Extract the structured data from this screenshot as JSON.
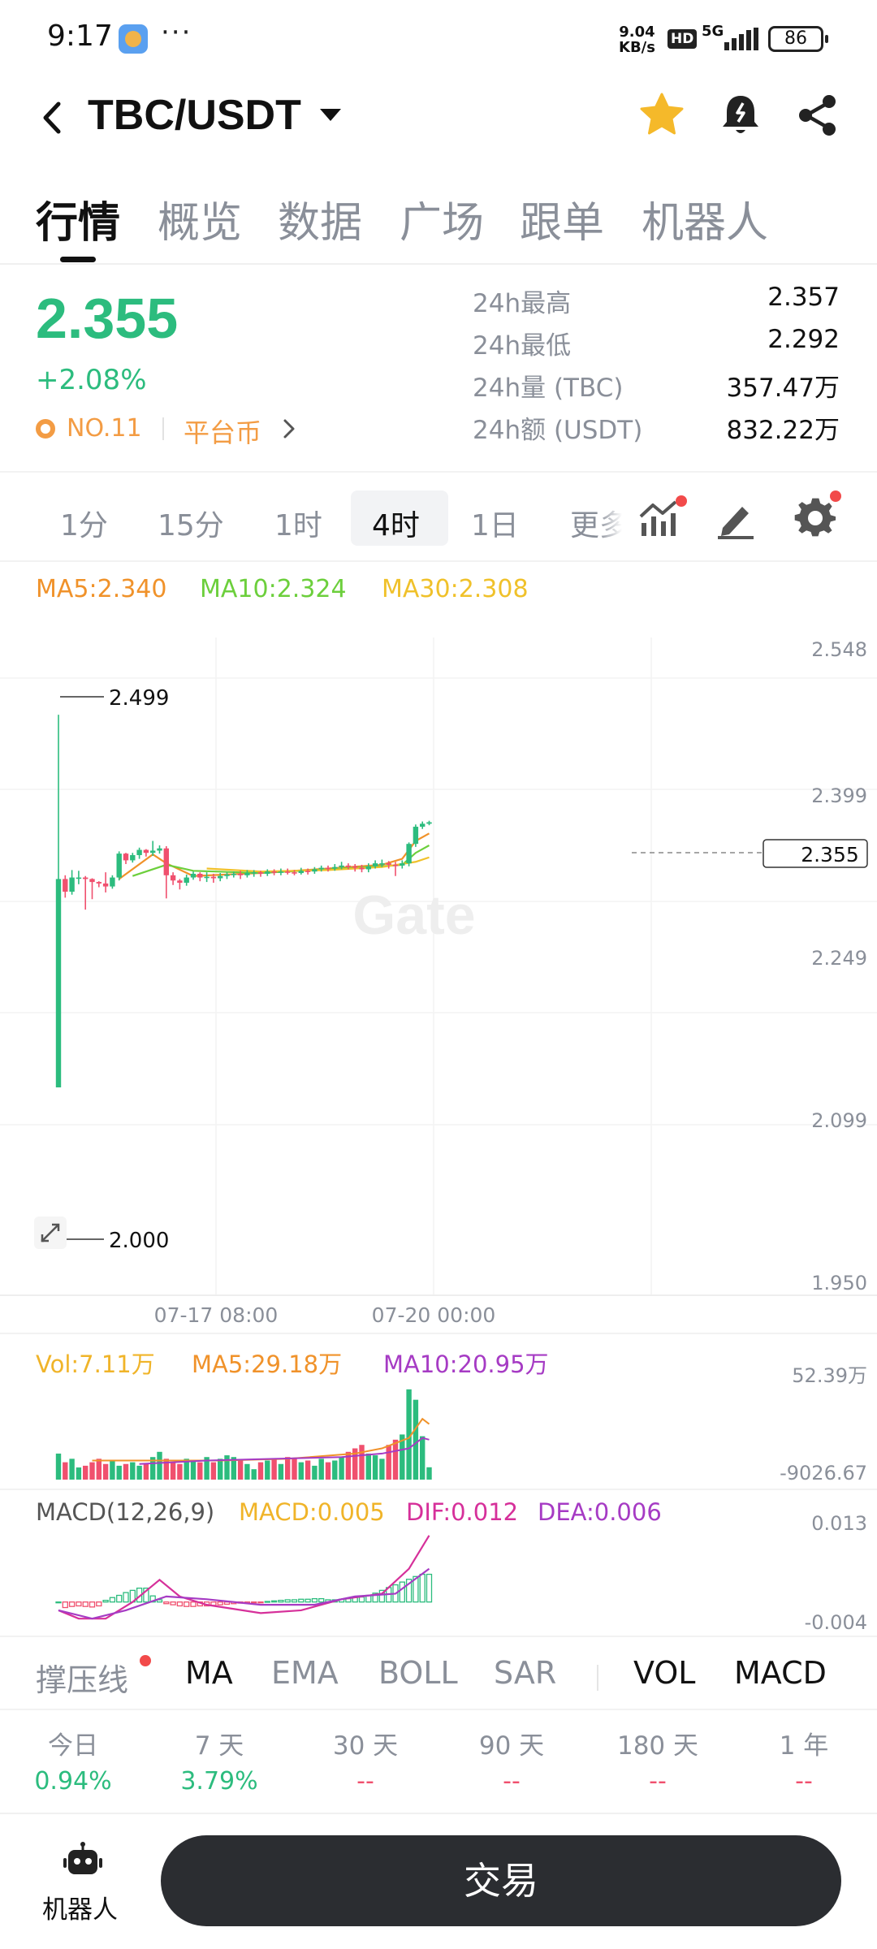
{
  "status_bar": {
    "time": "9:17",
    "more": "···",
    "net_speed_value": "9.04",
    "net_speed_unit": "KB/s",
    "hd": "HD",
    "network": "5G",
    "battery": "86"
  },
  "header": {
    "pair": "TBC/USDT"
  },
  "main_tabs": [
    "行情",
    "概览",
    "数据",
    "广场",
    "跟单",
    "机器人"
  ],
  "ticker": {
    "price": "2.355",
    "change": "+2.08%",
    "rank": "NO.11",
    "category": "平台币",
    "stats": [
      {
        "label": "24h最高",
        "value": "2.357"
      },
      {
        "label": "24h最低",
        "value": "2.292"
      },
      {
        "label": "24h量 (TBC)",
        "value": "357.47万"
      },
      {
        "label": "24h额 (USDT)",
        "value": "832.22万"
      }
    ]
  },
  "intervals": {
    "items": [
      "1分",
      "15分",
      "1时",
      "4时",
      "1日"
    ],
    "active": "4时",
    "more": "更多"
  },
  "ma_legend": {
    "ma5": "MA5:2.340",
    "ma10": "MA10:2.324",
    "ma30": "MA30:2.308"
  },
  "colors": {
    "up": "#2cbc7e",
    "down": "#f0506e",
    "ma5": "#f0922a",
    "ma10": "#6ccf3c",
    "ma30": "#f0c12a",
    "vol_ma10": "#a63bc4",
    "dif": "#d6309a",
    "dea": "#a63bc4"
  },
  "chart_data": [
    {
      "type": "candlestick",
      "interval": "4时",
      "x_ticks": [
        "07-17 08:00",
        "07-20 00:00"
      ],
      "y_ticks": [
        "2.548",
        "2.399",
        "2.249",
        "2.099",
        "1.950"
      ],
      "ylim": [
        1.95,
        2.548
      ],
      "high_marker": "2.499",
      "low_marker": "2.000",
      "last_price": "2.355",
      "watermark": "Gate",
      "candles": [
        [
          2.0,
          2.279,
          2.0,
          2.499
        ],
        [
          2.279,
          2.262,
          2.254,
          2.284
        ],
        [
          2.262,
          2.281,
          2.258,
          2.291
        ],
        [
          2.281,
          2.281,
          2.272,
          2.29
        ],
        [
          2.281,
          2.279,
          2.238,
          2.283
        ],
        [
          2.279,
          2.275,
          2.252,
          2.28
        ],
        [
          2.275,
          2.273,
          2.268,
          2.276
        ],
        [
          2.273,
          2.269,
          2.261,
          2.288
        ],
        [
          2.269,
          2.281,
          2.266,
          2.284
        ],
        [
          2.281,
          2.313,
          2.277,
          2.316
        ],
        [
          2.313,
          2.304,
          2.299,
          2.314
        ],
        [
          2.304,
          2.311,
          2.301,
          2.314
        ],
        [
          2.311,
          2.318,
          2.306,
          2.321
        ],
        [
          2.318,
          2.314,
          2.309,
          2.319
        ],
        [
          2.314,
          2.317,
          2.31,
          2.33
        ],
        [
          2.317,
          2.32,
          2.313,
          2.324
        ],
        [
          2.32,
          2.284,
          2.253,
          2.323
        ],
        [
          2.284,
          2.277,
          2.271,
          2.288
        ],
        [
          2.277,
          2.274,
          2.265,
          2.279
        ],
        [
          2.274,
          2.281,
          2.27,
          2.285
        ],
        [
          2.281,
          2.286,
          2.278,
          2.289
        ],
        [
          2.286,
          2.281,
          2.276,
          2.288
        ],
        [
          2.281,
          2.282,
          2.275,
          2.288
        ],
        [
          2.282,
          2.28,
          2.274,
          2.286
        ],
        [
          2.28,
          2.283,
          2.276,
          2.287
        ],
        [
          2.283,
          2.285,
          2.279,
          2.288
        ],
        [
          2.285,
          2.286,
          2.281,
          2.289
        ],
        [
          2.286,
          2.284,
          2.279,
          2.29
        ],
        [
          2.284,
          2.287,
          2.281,
          2.291
        ],
        [
          2.287,
          2.288,
          2.282,
          2.291
        ],
        [
          2.288,
          2.286,
          2.282,
          2.29
        ],
        [
          2.286,
          2.289,
          2.283,
          2.292
        ],
        [
          2.289,
          2.288,
          2.284,
          2.292
        ],
        [
          2.288,
          2.289,
          2.284,
          2.293
        ],
        [
          2.289,
          2.288,
          2.285,
          2.293
        ],
        [
          2.288,
          2.287,
          2.284,
          2.291
        ],
        [
          2.287,
          2.29,
          2.285,
          2.294
        ],
        [
          2.29,
          2.289,
          2.285,
          2.293
        ],
        [
          2.289,
          2.292,
          2.286,
          2.295
        ],
        [
          2.292,
          2.294,
          2.289,
          2.297
        ],
        [
          2.294,
          2.293,
          2.289,
          2.297
        ],
        [
          2.293,
          2.295,
          2.29,
          2.299
        ],
        [
          2.295,
          2.297,
          2.292,
          2.302
        ],
        [
          2.297,
          2.296,
          2.292,
          2.3
        ],
        [
          2.296,
          2.294,
          2.289,
          2.299
        ],
        [
          2.294,
          2.292,
          2.288,
          2.298
        ],
        [
          2.292,
          2.296,
          2.288,
          2.3
        ],
        [
          2.296,
          2.3,
          2.293,
          2.304
        ],
        [
          2.3,
          2.3,
          2.295,
          2.305
        ],
        [
          2.3,
          2.298,
          2.293,
          2.303
        ],
        [
          2.298,
          2.297,
          2.283,
          2.302
        ],
        [
          2.297,
          2.3,
          2.293,
          2.304
        ],
        [
          2.3,
          2.326,
          2.296,
          2.328
        ],
        [
          2.326,
          2.349,
          2.322,
          2.352
        ],
        [
          2.349,
          2.353,
          2.346,
          2.356
        ],
        [
          2.353,
          2.355,
          2.351,
          2.357
        ]
      ],
      "ma_lines": {
        "MA5": [
          [
            9,
            2.279
          ],
          [
            14,
            2.312
          ],
          [
            16,
            2.3
          ],
          [
            20,
            2.283
          ],
          [
            30,
            2.287
          ],
          [
            40,
            2.293
          ],
          [
            48,
            2.298
          ],
          [
            51,
            2.306
          ],
          [
            53,
            2.33
          ],
          [
            55,
            2.34
          ]
        ],
        "MA10": [
          [
            11,
            2.283
          ],
          [
            16,
            2.298
          ],
          [
            20,
            2.29
          ],
          [
            30,
            2.287
          ],
          [
            40,
            2.292
          ],
          [
            48,
            2.296
          ],
          [
            51,
            2.298
          ],
          [
            53,
            2.314
          ],
          [
            55,
            2.324
          ]
        ],
        "MA30": [
          [
            22,
            2.293
          ],
          [
            30,
            2.289
          ],
          [
            40,
            2.291
          ],
          [
            48,
            2.295
          ],
          [
            53,
            2.302
          ],
          [
            55,
            2.308
          ]
        ]
      }
    },
    {
      "type": "bar",
      "name": "Vol",
      "legend": {
        "vol": "Vol:7.11万",
        "ma5": "MA5:29.18万",
        "ma10": "MA10:20.95万"
      },
      "y_ticks": [
        "52.39万",
        "-9026.67"
      ],
      "ylim": [
        0,
        52.39
      ],
      "values": [
        15,
        10,
        12,
        7,
        8,
        10,
        12,
        9,
        11,
        8,
        9,
        10,
        8,
        9,
        13,
        16,
        12,
        10,
        9,
        12,
        11,
        10,
        13,
        10,
        12,
        14,
        13,
        11,
        9,
        6,
        10,
        11,
        12,
        9,
        13,
        12,
        10,
        11,
        8,
        12,
        10,
        11,
        13,
        16,
        18,
        20,
        15,
        14,
        12,
        20,
        23,
        26,
        52,
        46,
        25,
        7.11
      ],
      "ma5_points": [
        [
          5,
          11
        ],
        [
          14,
          11
        ],
        [
          24,
          11
        ],
        [
          34,
          12
        ],
        [
          44,
          15
        ],
        [
          48,
          18
        ],
        [
          52,
          24
        ],
        [
          54,
          35
        ],
        [
          55,
          32
        ]
      ],
      "ma10_points": [
        [
          12,
          9
        ],
        [
          22,
          11
        ],
        [
          32,
          12
        ],
        [
          42,
          13
        ],
        [
          48,
          15
        ],
        [
          52,
          18
        ],
        [
          54,
          24
        ],
        [
          55,
          23
        ]
      ]
    },
    {
      "type": "line",
      "name": "MACD",
      "legend": {
        "title": "MACD(12,26,9)",
        "macd": "MACD:0.005",
        "dif": "DIF:0.012",
        "dea": "DEA:0.006"
      },
      "y_ticks": [
        "0.013",
        "-0.004"
      ],
      "ylim": [
        -0.004,
        0.013
      ],
      "dif_points": [
        [
          0,
          -0.0015
        ],
        [
          3,
          -0.003
        ],
        [
          7,
          -0.003
        ],
        [
          11,
          0.0
        ],
        [
          15,
          0.004
        ],
        [
          18,
          0.001
        ],
        [
          22,
          -0.0005
        ],
        [
          30,
          -0.002
        ],
        [
          36,
          -0.0015
        ],
        [
          42,
          0.0005
        ],
        [
          48,
          0.0015
        ],
        [
          52,
          0.006
        ],
        [
          55,
          0.012
        ]
      ],
      "dea_points": [
        [
          0,
          -0.0015
        ],
        [
          5,
          -0.003
        ],
        [
          10,
          -0.0015
        ],
        [
          16,
          0.001
        ],
        [
          22,
          0.0005
        ],
        [
          30,
          -0.0005
        ],
        [
          38,
          -0.0005
        ],
        [
          44,
          0.001
        ],
        [
          50,
          0.0015
        ],
        [
          55,
          0.006
        ]
      ],
      "histogram": [
        0,
        -0.001,
        -0.0008,
        -0.0007,
        -0.0008,
        -0.0009,
        -0.0007,
        0.0003,
        0.0008,
        0.0012,
        0.0017,
        0.0021,
        0.0025,
        0.0025,
        0.0011,
        0.0004,
        -0.0003,
        -0.0005,
        -0.0007,
        -0.0008,
        -0.0008,
        -0.0007,
        -0.0007,
        -0.0006,
        -0.0005,
        -0.0004,
        -0.0003,
        -0.0002,
        -0.0002,
        -0.0001,
        -0.0001,
        0.0001,
        0.0002,
        0.0003,
        0.0004,
        0.0004,
        0.0005,
        0.0005,
        0.0006,
        0.0006,
        0.0004,
        0.0004,
        0.0005,
        0.0006,
        0.0008,
        0.0009,
        0.0012,
        0.0016,
        0.0021,
        0.0026,
        0.0031,
        0.0036,
        0.0041,
        0.0046,
        0.005,
        0.005
      ]
    }
  ],
  "indicators": {
    "items": [
      "撑压线",
      "MA",
      "EMA",
      "BOLL",
      "SAR",
      "VOL",
      "MACD"
    ],
    "active": [
      "MA",
      "VOL",
      "MACD"
    ]
  },
  "periods": [
    {
      "label": "今日",
      "value": "0.94%",
      "color": "#2cbc7e"
    },
    {
      "label": "7 天",
      "value": "3.79%",
      "color": "#2cbc7e"
    },
    {
      "label": "30 天",
      "value": "--",
      "color": "#f0506e"
    },
    {
      "label": "90 天",
      "value": "--",
      "color": "#f0506e"
    },
    {
      "label": "180 天",
      "value": "--",
      "color": "#f0506e"
    },
    {
      "label": "1 年",
      "value": "--",
      "color": "#f0506e"
    }
  ],
  "bottom": {
    "robot_label": "机器人",
    "trade_label": "交易"
  },
  "icons": [
    "back-icon",
    "caret-down-icon",
    "star-icon",
    "price-alert-icon",
    "share-icon",
    "indicator-icon",
    "draw-icon",
    "settings-icon",
    "expand-icon",
    "robot-icon",
    "chevron-right-icon"
  ]
}
